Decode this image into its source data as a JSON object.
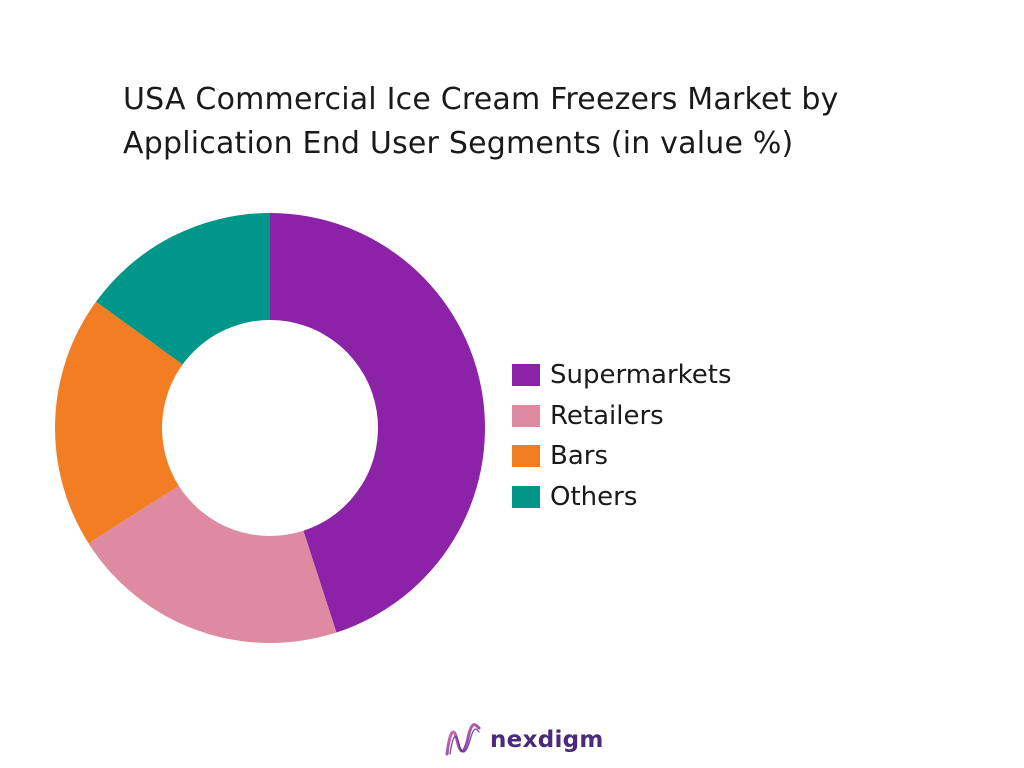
{
  "title_lines": [
    "USA Commercial Ice Cream Freezers Market by",
    "Application End User Segments (in value %)"
  ],
  "chart_data": {
    "type": "pie",
    "variant": "donut",
    "title": "USA Commercial Ice Cream Freezers Market by Application End User Segments (in value %)",
    "unit": "%",
    "categories": [
      "Supermarkets",
      "Retailers",
      "Bars",
      "Others"
    ],
    "values": [
      45,
      21,
      19,
      15
    ],
    "colors": [
      "#8b22a8",
      "#de8aa0",
      "#f37d22",
      "#00978a"
    ],
    "legend_position": "right",
    "start_angle": "12 o'clock",
    "direction": "clockwise"
  },
  "brand": {
    "name": "nexdigm",
    "icon": "nexdigm-logo-icon",
    "color": "#4a2a7a"
  }
}
